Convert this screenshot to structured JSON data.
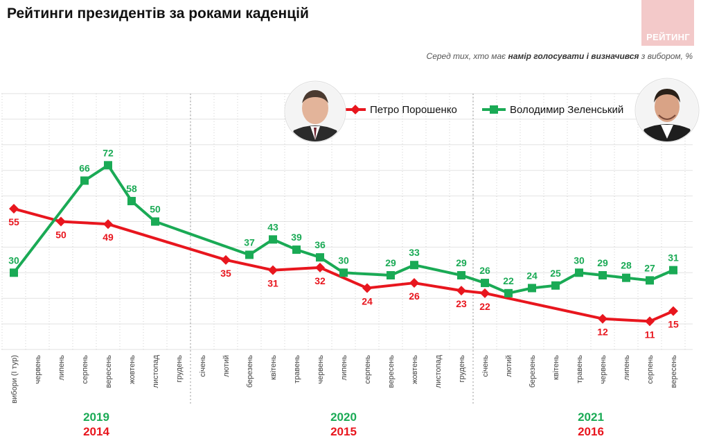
{
  "title": "Рейтинги президентів за роками каденцій",
  "brand": "РЕЙТИНГ",
  "subtitle": {
    "pre": "Серед тих, хто має ",
    "bold": "намір голосувати і визначився",
    "post": " з вибором, %"
  },
  "colors": {
    "poroshenko": "#e8161e",
    "zelensky": "#1aaa55",
    "grid": "#e2e2e2"
  },
  "chart_data": {
    "type": "line",
    "categories": [
      "вибори (I тур)",
      "червень",
      "липень",
      "серпень",
      "вересень",
      "жовтень",
      "листопад",
      "грудень",
      "січень",
      "лютий",
      "березень",
      "квітень",
      "травень",
      "червень",
      "липень",
      "серпень",
      "вересень",
      "жовтень",
      "листопад",
      "грудень",
      "січень",
      "лютий",
      "березень",
      "квітень",
      "травень",
      "червень",
      "липень",
      "серпень",
      "вересень"
    ],
    "ylim": [
      0,
      100
    ],
    "series": [
      {
        "name": "Петро Порошенко",
        "color": "#e8161e",
        "values": [
          55,
          null,
          50,
          null,
          49,
          null,
          null,
          null,
          null,
          35,
          null,
          31,
          null,
          32,
          null,
          24,
          null,
          26,
          null,
          23,
          22,
          null,
          null,
          null,
          null,
          12,
          null,
          11,
          15
        ]
      },
      {
        "name": "Володимир Зеленський",
        "color": "#1aaa55",
        "values": [
          30,
          null,
          null,
          66,
          72,
          58,
          50,
          null,
          null,
          null,
          37,
          43,
          39,
          36,
          30,
          null,
          29,
          33,
          null,
          29,
          26,
          22,
          24,
          25,
          30,
          29,
          28,
          27,
          31
        ]
      }
    ],
    "years": [
      {
        "top": "2019",
        "bottom": "2014"
      },
      {
        "top": "2020",
        "bottom": "2015"
      },
      {
        "top": "2021",
        "bottom": "2016"
      }
    ]
  }
}
